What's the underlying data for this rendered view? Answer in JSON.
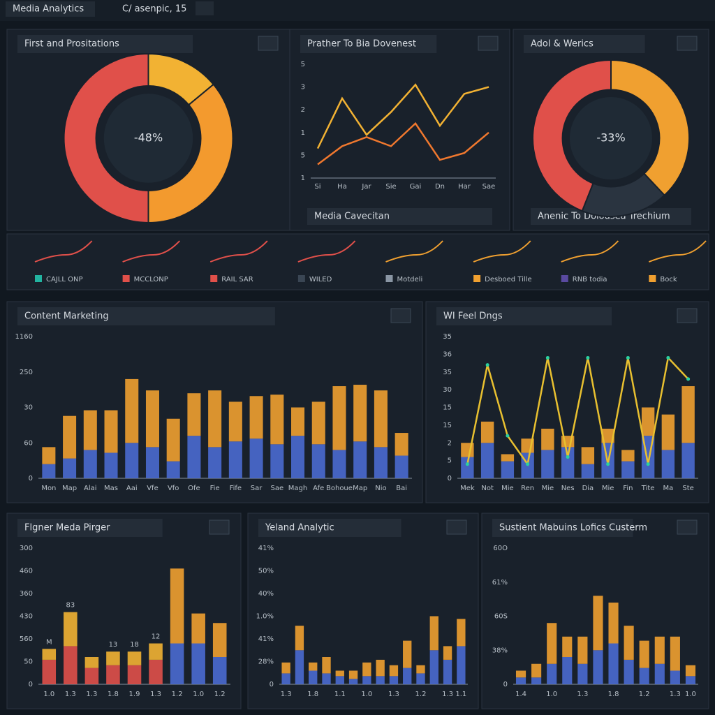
{
  "header": {
    "title": "Media Analytics",
    "tab": "C/ asenpic, 15"
  },
  "panels": [
    {
      "title": "First and Prositations",
      "chart_data": {
        "type": "pie",
        "center_label": "-48%",
        "values": [
          14,
          36,
          50
        ],
        "colors": [
          "#f2b233",
          "#f39a2e",
          "#e0504a"
        ]
      }
    },
    {
      "title": "Prather To Bia Dovenest",
      "footer": "Media Cavecitan",
      "chart_data": {
        "type": "line",
        "categories": [
          "Si",
          "Ha",
          "Jar",
          "Sie",
          "Gai",
          "Dn",
          "Har",
          "Sae"
        ],
        "y_labels": [
          "1",
          "5",
          "1",
          "2",
          "3",
          "5"
        ],
        "ylim": [
          0,
          5
        ],
        "series": [
          {
            "color": "#f2b233",
            "values": [
              1.3,
              3.5,
              1.9,
              2.9,
              4.1,
              2.3,
              3.7,
              4.0
            ]
          },
          {
            "color": "#f0782e",
            "values": [
              0.6,
              1.4,
              1.8,
              1.4,
              2.4,
              0.8,
              1.1,
              2.0
            ]
          }
        ]
      }
    },
    {
      "title": "Adol & Werics",
      "footer": "Anenic To Dolousea Trechium",
      "chart_data": {
        "type": "pie",
        "center_label": "-33%",
        "values": [
          38,
          18,
          44
        ],
        "colors": [
          "#f0a030",
          "#2a3440",
          "#e0504a"
        ]
      }
    },
    {
      "items": [
        {
          "label": "CAJLL ONP",
          "color": "#22b3a0"
        },
        {
          "label": "MCCLONP",
          "color": "#e0504a"
        },
        {
          "label": "RAIL SAR",
          "color": "#e0504a"
        },
        {
          "label": "WILED",
          "color": "#3a4654"
        },
        {
          "label": "Motdeli",
          "color": "#8a96a4"
        },
        {
          "label": "Desboed Tille",
          "color": "#f0a030"
        },
        {
          "label": "RNB todia",
          "color": "#5a4aa0"
        },
        {
          "label": "Bock",
          "color": "#f0a030"
        }
      ]
    },
    {
      "title": "Content Marketing",
      "chart_data": {
        "type": "bar",
        "categories": [
          "Mon",
          "Map",
          "Alai",
          "Mas",
          "Aai",
          "Vfe",
          "Vfo",
          "Ofe",
          "Fie",
          "Fife",
          "Sar",
          "Sae",
          "Magh",
          "Afe",
          "Bohoue",
          "Map",
          "Nio",
          "Bai"
        ],
        "y_labels": [
          "0",
          "60",
          "30",
          "250",
          "1160"
        ],
        "ylim": [
          0,
          100
        ],
        "series": [
          {
            "color": "#4a6ad0",
            "values": [
              10,
              14,
              20,
              18,
              25,
              22,
              12,
              30,
              22,
              26,
              28,
              24,
              30,
              24,
              20,
              26,
              22,
              16
            ]
          },
          {
            "color": "#f0a030",
            "values": [
              12,
              30,
              28,
              30,
              45,
              40,
              30,
              30,
              40,
              28,
              30,
              35,
              20,
              30,
              45,
              40,
              40,
              16
            ]
          }
        ]
      }
    },
    {
      "title": "WI Feel Dngs",
      "chart_data": {
        "type": "bar",
        "categories": [
          "Mek",
          "Not",
          "Mie",
          "Ren",
          "Mie",
          "Nes",
          "Dia",
          "Mie",
          "Fin",
          "Tite",
          "Ma",
          "Ste"
        ],
        "y_labels": [
          "0",
          "5",
          "2",
          "15",
          "15",
          "30",
          "35",
          "36",
          "35"
        ],
        "ylim": [
          0,
          100
        ],
        "series": [
          {
            "color": "#4a6ad0",
            "values": [
              15,
              25,
              12,
              18,
              20,
              22,
              10,
              25,
              12,
              30,
              20,
              25
            ]
          },
          {
            "color": "#f0a030",
            "values": [
              10,
              15,
              5,
              10,
              15,
              8,
              12,
              10,
              8,
              20,
              25,
              40
            ]
          }
        ],
        "line": {
          "color": "#e8c030",
          "values": [
            10,
            80,
            30,
            10,
            85,
            15,
            85,
            10,
            85,
            10,
            85,
            70
          ]
        }
      }
    },
    {
      "title": "Flgner Meda Pirger",
      "chart_data": {
        "type": "bar",
        "categories": [
          "1.0",
          "1.3",
          "1.3",
          "1.8",
          "1.9",
          "1.3",
          "1.2",
          "1.0",
          "1.2"
        ],
        "y_labels": [
          "0",
          "50",
          "560",
          "430",
          "360",
          "460",
          "300"
        ],
        "ylim": [
          0,
          100
        ],
        "series": [
          {
            "color": "#e0504a",
            "values": [
              18,
              28,
              12,
              14,
              14,
              18,
              null,
              null,
              null
            ]
          },
          {
            "color": "#f2b233",
            "values": [
              8,
              25,
              8,
              10,
              10,
              12,
              null,
              null,
              null
            ]
          },
          {
            "color": "#4a6ad0",
            "values": [
              null,
              null,
              null,
              null,
              null,
              null,
              30,
              30,
              20
            ]
          },
          {
            "color": "#f0a030",
            "values": [
              null,
              null,
              null,
              null,
              null,
              null,
              55,
              22,
              25
            ]
          }
        ],
        "bar_labels": [
          "M",
          "83",
          null,
          "13",
          "18",
          "12",
          null,
          null,
          null
        ]
      }
    },
    {
      "title": "Yeland Analytic",
      "chart_data": {
        "type": "bar",
        "categories": [
          "1.3",
          null,
          "1.8",
          null,
          "1.1",
          null,
          "1.0",
          null,
          "1.3",
          null,
          "1.2",
          null,
          "1.3",
          "1.1"
        ],
        "y_labels": [
          "0",
          "28%",
          "41%",
          "1.0%",
          "40%",
          "50%",
          "41%"
        ],
        "ylim": [
          0,
          100
        ],
        "series": [
          {
            "color": "#4a6ad0",
            "values": [
              8,
              25,
              10,
              8,
              6,
              4,
              6,
              6,
              6,
              12,
              8,
              25,
              18,
              28
            ]
          },
          {
            "color": "#f0a030",
            "values": [
              8,
              18,
              6,
              12,
              4,
              6,
              10,
              12,
              8,
              20,
              6,
              25,
              10,
              20
            ]
          }
        ]
      }
    },
    {
      "title": "Sustient Mabuins Lofics Custerm",
      "chart_data": {
        "type": "bar",
        "categories": [
          "1.4",
          null,
          "1.0",
          null,
          "1.3",
          null,
          "1.8",
          null,
          "1.2",
          null,
          "1.3",
          "1.0"
        ],
        "y_labels": [
          "0",
          "38%",
          "60S",
          "61%",
          "60O"
        ],
        "ylim": [
          0,
          100
        ],
        "series": [
          {
            "color": "#4a6ad0",
            "values": [
              5,
              5,
              15,
              20,
              15,
              25,
              30,
              18,
              12,
              15,
              10,
              6
            ]
          },
          {
            "color": "#f0a030",
            "values": [
              5,
              10,
              30,
              15,
              20,
              40,
              30,
              25,
              20,
              20,
              25,
              8
            ]
          }
        ]
      }
    }
  ]
}
